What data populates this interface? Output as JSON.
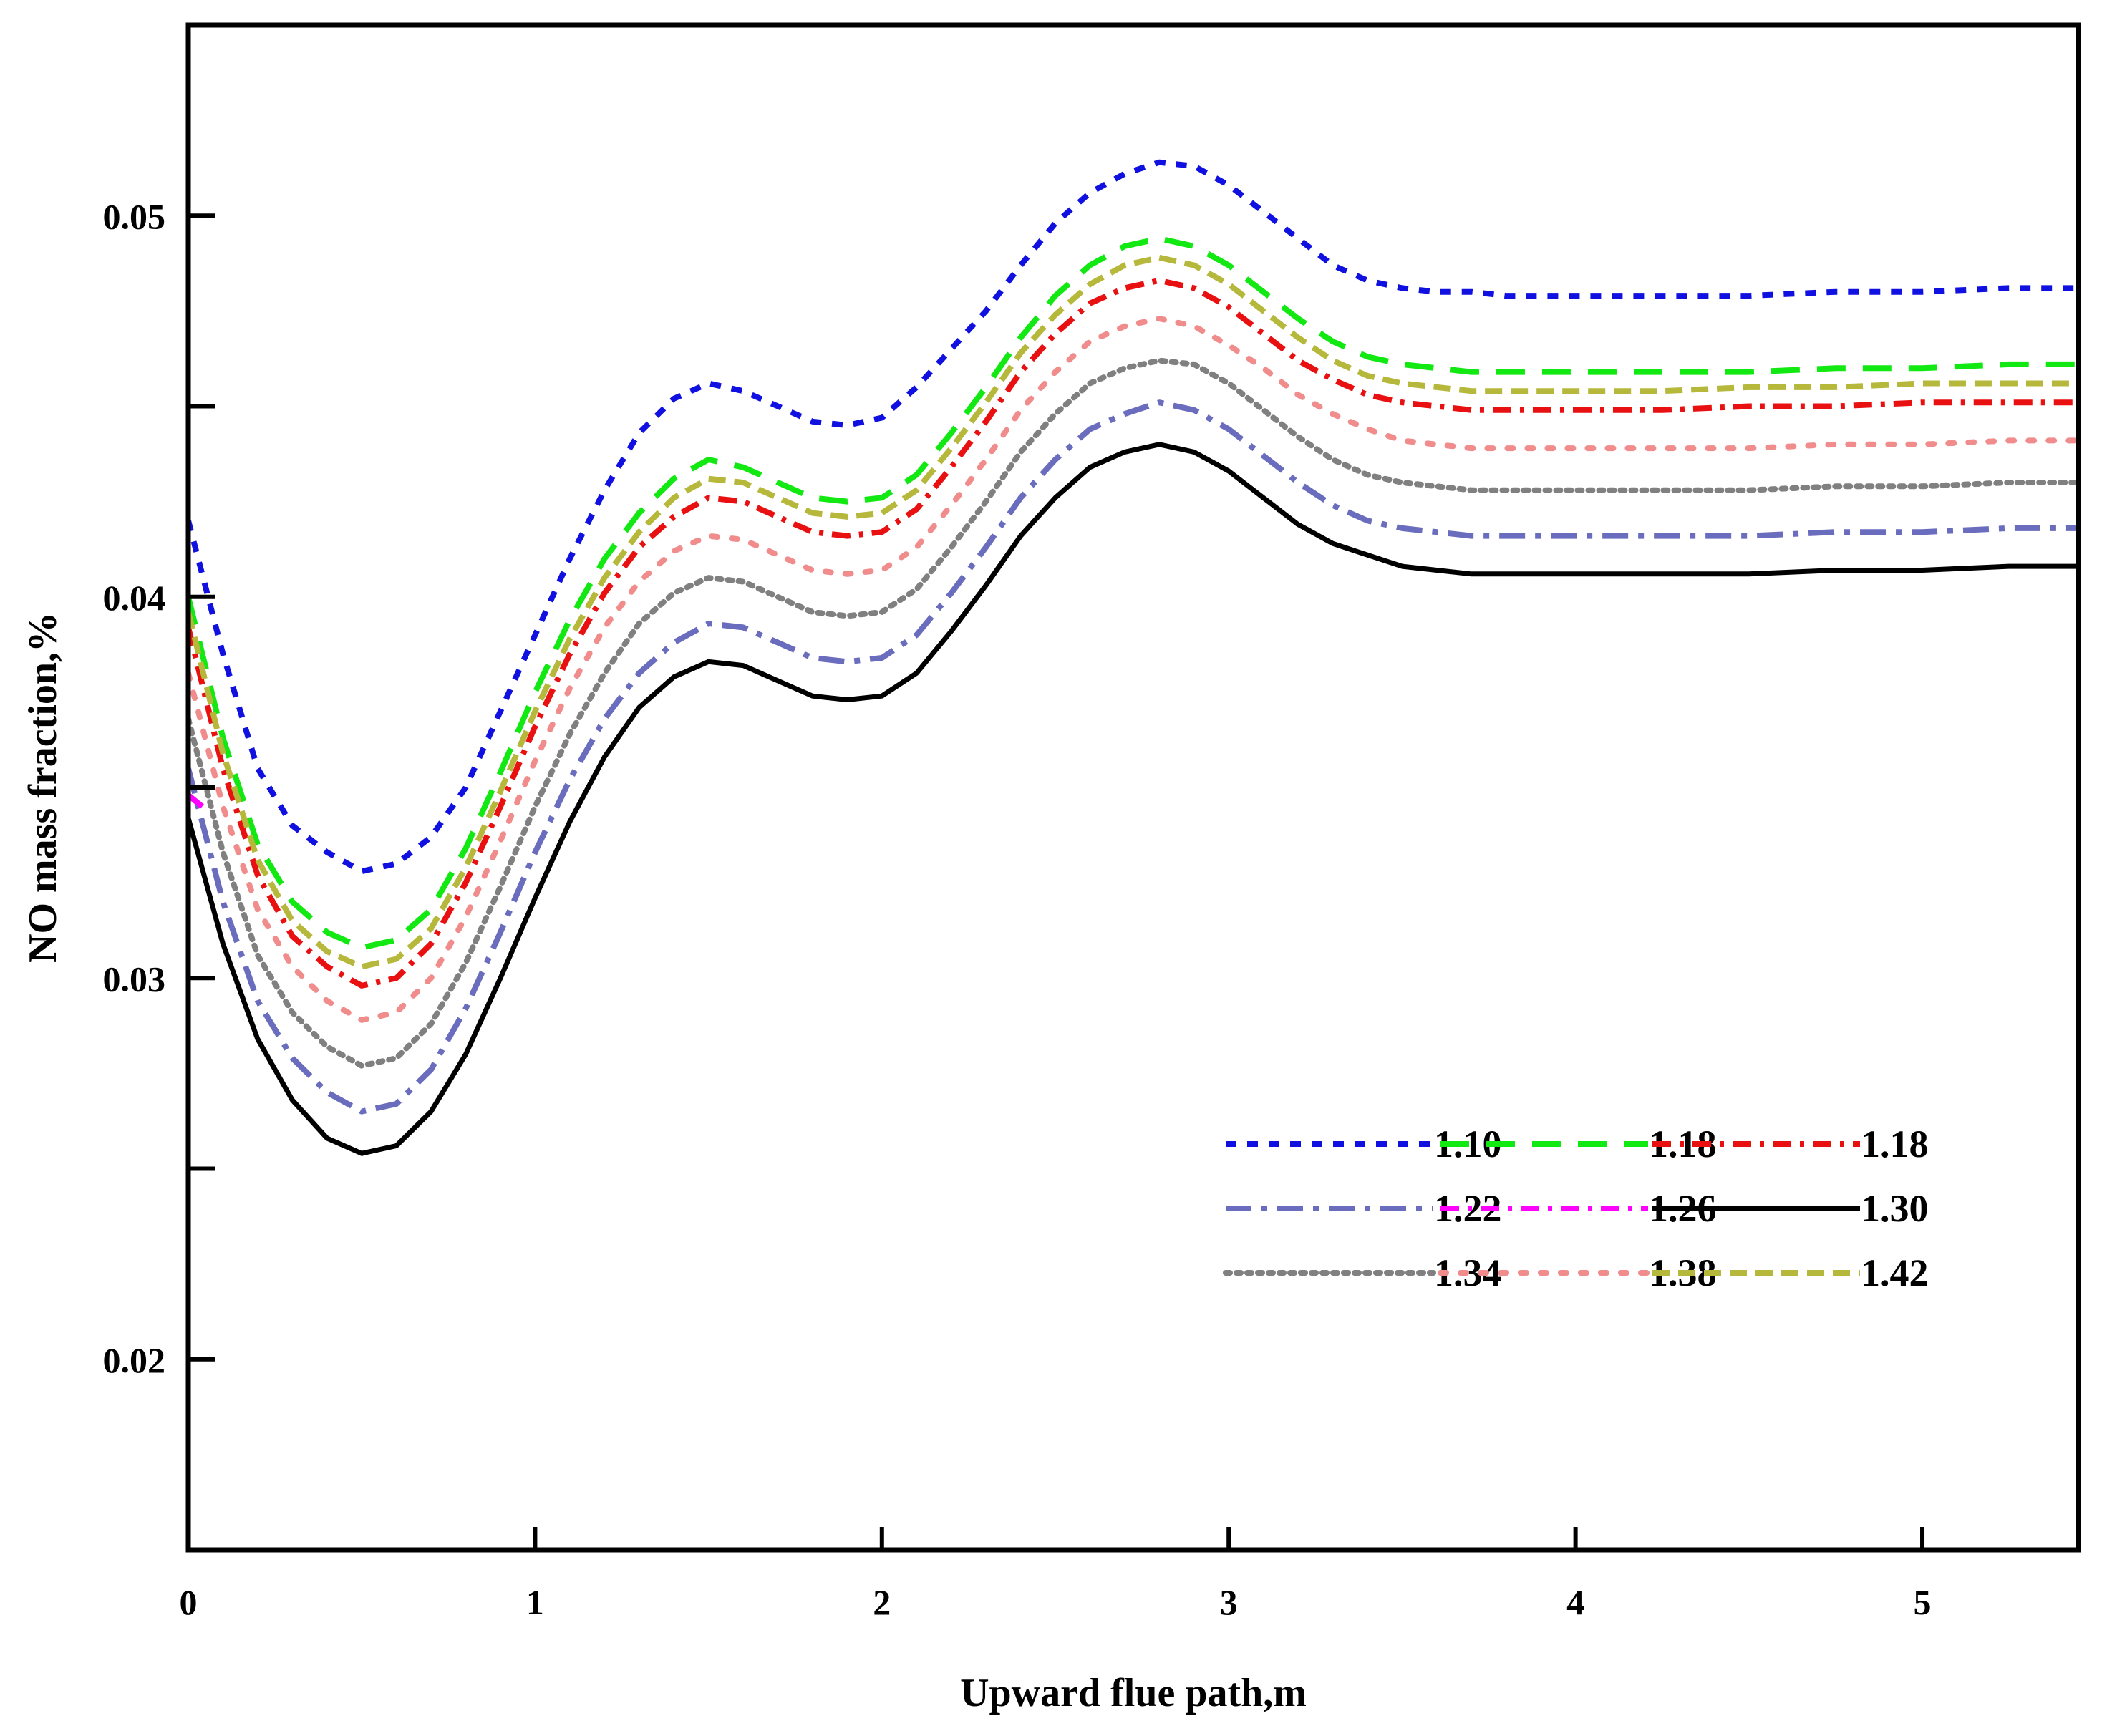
{
  "chart_data": {
    "type": "line",
    "title": "",
    "xlabel": "Upward flue path,m",
    "ylabel": "NO mass fraction,%",
    "xlim": [
      0,
      5.45
    ],
    "ylim": [
      0.015,
      0.055
    ],
    "x_ticks": [
      0,
      1,
      2,
      3,
      4,
      5
    ],
    "x_tick_labels": [
      "0",
      "1",
      "2",
      "3",
      "4",
      "5"
    ],
    "y_ticks": [
      0.02,
      0.025,
      0.03,
      0.035,
      0.04,
      0.045,
      0.05
    ],
    "y_tick_labels": [
      "0.02",
      "",
      "0.03",
      "",
      "0.04",
      "",
      "0.05"
    ],
    "grid": false,
    "legend_position": "lower-right",
    "series": [
      {
        "name": "1.10",
        "color": "#1010e0",
        "dash": "dash-short",
        "x": [
          0,
          0.1,
          0.2,
          0.3,
          0.4,
          0.5,
          0.6,
          0.7,
          0.8,
          0.9,
          1.0,
          1.1,
          1.2,
          1.3,
          1.4,
          1.5,
          1.6,
          1.7,
          1.8,
          1.9,
          2.0,
          2.1,
          2.2,
          2.3,
          2.4,
          2.5,
          2.6,
          2.7,
          2.8,
          2.9,
          3.0,
          3.1,
          3.2,
          3.3,
          3.4,
          3.5,
          3.6,
          3.7,
          3.8,
          3.9,
          4.0,
          4.25,
          4.5,
          4.75,
          5.0,
          5.25,
          5.45
        ],
        "y": [
          0.042,
          0.0385,
          0.0355,
          0.034,
          0.0333,
          0.0328,
          0.033,
          0.0337,
          0.035,
          0.037,
          0.039,
          0.041,
          0.0428,
          0.0443,
          0.0452,
          0.0456,
          0.0454,
          0.045,
          0.0446,
          0.0445,
          0.0447,
          0.0455,
          0.0465,
          0.0475,
          0.0487,
          0.0498,
          0.0506,
          0.0511,
          0.0514,
          0.0513,
          0.0508,
          0.0501,
          0.0494,
          0.0487,
          0.0483,
          0.0481,
          0.048,
          0.048,
          0.0479,
          0.0479,
          0.0479,
          0.0479,
          0.0479,
          0.048,
          0.048,
          0.0481,
          0.0481
        ]
      },
      {
        "name": "1.22",
        "color": "#6a6cbd",
        "dash": "dash-dot-long",
        "x": [
          0,
          0.1,
          0.2,
          0.3,
          0.4,
          0.5,
          0.6,
          0.7,
          0.8,
          0.9,
          1.0,
          1.1,
          1.2,
          1.3,
          1.4,
          1.5,
          1.6,
          1.7,
          1.8,
          1.9,
          2.0,
          2.1,
          2.2,
          2.3,
          2.4,
          2.5,
          2.6,
          2.7,
          2.8,
          2.9,
          3.0,
          3.1,
          3.2,
          3.3,
          3.4,
          3.5,
          3.6,
          3.7,
          3.8,
          3.9,
          4.0,
          4.25,
          4.5,
          4.75,
          5.0,
          5.25,
          5.45
        ],
        "y": [
          0.0355,
          0.032,
          0.0294,
          0.0279,
          0.027,
          0.0265,
          0.0267,
          0.0276,
          0.0292,
          0.0312,
          0.0333,
          0.0352,
          0.0368,
          0.038,
          0.0388,
          0.0393,
          0.0392,
          0.0388,
          0.0384,
          0.0383,
          0.0384,
          0.039,
          0.0401,
          0.0413,
          0.0426,
          0.0436,
          0.0444,
          0.0448,
          0.0451,
          0.0449,
          0.0444,
          0.0437,
          0.043,
          0.0424,
          0.042,
          0.0418,
          0.0417,
          0.0416,
          0.0416,
          0.0416,
          0.0416,
          0.0416,
          0.0416,
          0.0417,
          0.0417,
          0.0418,
          0.0418
        ]
      },
      {
        "name": "1.34",
        "color": "#808080",
        "dash": "dot",
        "x": [
          0,
          0.1,
          0.2,
          0.3,
          0.4,
          0.5,
          0.6,
          0.7,
          0.8,
          0.9,
          1.0,
          1.1,
          1.2,
          1.3,
          1.4,
          1.5,
          1.6,
          1.7,
          1.8,
          1.9,
          2.0,
          2.1,
          2.2,
          2.3,
          2.4,
          2.5,
          2.6,
          2.7,
          2.8,
          2.9,
          3.0,
          3.1,
          3.2,
          3.3,
          3.4,
          3.5,
          3.6,
          3.7,
          3.8,
          3.9,
          4.0,
          4.25,
          4.5,
          4.75,
          5.0,
          5.25,
          5.45
        ],
        "y": [
          0.0368,
          0.0333,
          0.0306,
          0.0291,
          0.0282,
          0.0277,
          0.0279,
          0.0288,
          0.0304,
          0.0324,
          0.0345,
          0.0364,
          0.038,
          0.0393,
          0.0401,
          0.0405,
          0.0404,
          0.04,
          0.0396,
          0.0395,
          0.0396,
          0.0402,
          0.0413,
          0.0425,
          0.0438,
          0.0448,
          0.0456,
          0.046,
          0.0462,
          0.0461,
          0.0456,
          0.0449,
          0.0442,
          0.0436,
          0.0432,
          0.043,
          0.0429,
          0.0428,
          0.0428,
          0.0428,
          0.0428,
          0.0428,
          0.0428,
          0.0429,
          0.0429,
          0.043,
          0.043
        ]
      },
      {
        "name": "1.18",
        "color": "#12e812",
        "dash": "dash-long",
        "x": [
          0,
          0.1,
          0.2,
          0.3,
          0.4,
          0.5,
          0.6,
          0.7,
          0.8,
          0.9,
          1.0,
          1.1,
          1.2,
          1.3,
          1.4,
          1.5,
          1.6,
          1.7,
          1.8,
          1.9,
          2.0,
          2.1,
          2.2,
          2.3,
          2.4,
          2.5,
          2.6,
          2.7,
          2.8,
          2.9,
          3.0,
          3.1,
          3.2,
          3.3,
          3.4,
          3.5,
          3.6,
          3.7,
          3.8,
          3.9,
          4.0,
          4.25,
          4.5,
          4.75,
          5.0,
          5.25,
          5.45
        ],
        "y": [
          0.04,
          0.0363,
          0.0335,
          0.032,
          0.0312,
          0.0308,
          0.031,
          0.0318,
          0.0334,
          0.0354,
          0.0375,
          0.0394,
          0.041,
          0.0422,
          0.0431,
          0.0436,
          0.0434,
          0.043,
          0.0426,
          0.0425,
          0.0426,
          0.0432,
          0.0443,
          0.0455,
          0.0468,
          0.0479,
          0.0487,
          0.0492,
          0.0494,
          0.0492,
          0.0487,
          0.048,
          0.0473,
          0.0467,
          0.0463,
          0.0461,
          0.046,
          0.0459,
          0.0459,
          0.0459,
          0.0459,
          0.0459,
          0.0459,
          0.046,
          0.046,
          0.0461,
          0.0461
        ]
      },
      {
        "name": "1.26",
        "color": "#ff00ff",
        "dash": "dash-dot",
        "x": [
          0,
          0.04
        ],
        "y": [
          0.0348,
          0.0345
        ]
      },
      {
        "name": "1.38",
        "color": "#f08c8c",
        "dash": "dot-sparse",
        "x": [
          0,
          0.1,
          0.2,
          0.3,
          0.4,
          0.5,
          0.6,
          0.7,
          0.8,
          0.9,
          1.0,
          1.1,
          1.2,
          1.3,
          1.4,
          1.5,
          1.6,
          1.7,
          1.8,
          1.9,
          2.0,
          2.1,
          2.2,
          2.3,
          2.4,
          2.5,
          2.6,
          2.7,
          2.8,
          2.9,
          3.0,
          3.1,
          3.2,
          3.3,
          3.4,
          3.5,
          3.6,
          3.7,
          3.8,
          3.9,
          4.0,
          4.25,
          4.5,
          4.75,
          5.0,
          5.25,
          5.45
        ],
        "y": [
          0.038,
          0.0345,
          0.0318,
          0.0303,
          0.0294,
          0.0289,
          0.0291,
          0.03,
          0.0316,
          0.0336,
          0.0357,
          0.0376,
          0.0392,
          0.0404,
          0.0412,
          0.0416,
          0.0415,
          0.0411,
          0.0407,
          0.0406,
          0.0407,
          0.0413,
          0.0424,
          0.0436,
          0.0449,
          0.0459,
          0.0467,
          0.0471,
          0.0473,
          0.0471,
          0.0466,
          0.046,
          0.0453,
          0.0448,
          0.0444,
          0.0441,
          0.044,
          0.0439,
          0.0439,
          0.0439,
          0.0439,
          0.0439,
          0.0439,
          0.044,
          0.044,
          0.0441,
          0.0441
        ]
      },
      {
        "name": "1.18",
        "color": "#e81010",
        "dash": "dash-dot",
        "x": [
          0,
          0.1,
          0.2,
          0.3,
          0.4,
          0.5,
          0.6,
          0.7,
          0.8,
          0.9,
          1.0,
          1.1,
          1.2,
          1.3,
          1.4,
          1.5,
          1.6,
          1.7,
          1.8,
          1.9,
          2.0,
          2.1,
          2.2,
          2.3,
          2.4,
          2.5,
          2.6,
          2.7,
          2.8,
          2.9,
          3.0,
          3.1,
          3.2,
          3.3,
          3.4,
          3.5,
          3.6,
          3.7,
          3.8,
          3.9,
          4.0,
          4.25,
          4.5,
          4.75,
          5.0,
          5.25,
          5.45
        ],
        "y": [
          0.0392,
          0.0355,
          0.0327,
          0.0311,
          0.0303,
          0.0298,
          0.03,
          0.0309,
          0.0325,
          0.0345,
          0.0366,
          0.0385,
          0.0401,
          0.0413,
          0.0421,
          0.0426,
          0.0425,
          0.0421,
          0.0417,
          0.0416,
          0.0417,
          0.0423,
          0.0434,
          0.0446,
          0.0459,
          0.0469,
          0.0477,
          0.0481,
          0.0483,
          0.0481,
          0.0476,
          0.0469,
          0.0462,
          0.0457,
          0.0453,
          0.0451,
          0.045,
          0.0449,
          0.0449,
          0.0449,
          0.0449,
          0.0449,
          0.045,
          0.045,
          0.0451,
          0.0451,
          0.0451
        ]
      },
      {
        "name": "1.30",
        "color": "#000000",
        "dash": "solid",
        "x": [
          0,
          0.1,
          0.2,
          0.3,
          0.4,
          0.5,
          0.6,
          0.7,
          0.8,
          0.9,
          1.0,
          1.1,
          1.2,
          1.3,
          1.4,
          1.5,
          1.6,
          1.7,
          1.8,
          1.9,
          2.0,
          2.1,
          2.2,
          2.3,
          2.4,
          2.5,
          2.6,
          2.7,
          2.8,
          2.9,
          3.0,
          3.1,
          3.2,
          3.3,
          3.4,
          3.5,
          3.6,
          3.7,
          3.8,
          3.9,
          4.0,
          4.25,
          4.5,
          4.75,
          5.0,
          5.25,
          5.45
        ],
        "y": [
          0.0342,
          0.0309,
          0.0284,
          0.0268,
          0.0258,
          0.0254,
          0.0256,
          0.0265,
          0.028,
          0.03,
          0.0321,
          0.0341,
          0.0358,
          0.0371,
          0.0379,
          0.0383,
          0.0382,
          0.0378,
          0.0374,
          0.0373,
          0.0374,
          0.038,
          0.0391,
          0.0403,
          0.0416,
          0.0426,
          0.0434,
          0.0438,
          0.044,
          0.0438,
          0.0433,
          0.0426,
          0.0419,
          0.0414,
          0.0411,
          0.0408,
          0.0407,
          0.0406,
          0.0406,
          0.0406,
          0.0406,
          0.0406,
          0.0406,
          0.0407,
          0.0407,
          0.0408,
          0.0408
        ]
      },
      {
        "name": "1.42",
        "color": "#b5b83a",
        "dash": "dash-medium",
        "x": [
          0,
          0.1,
          0.2,
          0.3,
          0.4,
          0.5,
          0.6,
          0.7,
          0.8,
          0.9,
          1.0,
          1.1,
          1.2,
          1.3,
          1.4,
          1.5,
          1.6,
          1.7,
          1.8,
          1.9,
          2.0,
          2.1,
          2.2,
          2.3,
          2.4,
          2.5,
          2.6,
          2.7,
          2.8,
          2.9,
          3.0,
          3.1,
          3.2,
          3.3,
          3.4,
          3.5,
          3.6,
          3.7,
          3.8,
          3.9,
          4.0,
          4.25,
          4.5,
          4.75,
          5.0,
          5.25,
          5.45
        ],
        "y": [
          0.0396,
          0.0359,
          0.0331,
          0.0315,
          0.0307,
          0.0303,
          0.0305,
          0.0313,
          0.0329,
          0.0349,
          0.037,
          0.0389,
          0.0405,
          0.0417,
          0.0426,
          0.0431,
          0.043,
          0.0426,
          0.0422,
          0.0421,
          0.0422,
          0.0428,
          0.0439,
          0.0451,
          0.0464,
          0.0474,
          0.0482,
          0.0487,
          0.0489,
          0.0487,
          0.0482,
          0.0475,
          0.0468,
          0.0462,
          0.0458,
          0.0456,
          0.0455,
          0.0454,
          0.0454,
          0.0454,
          0.0454,
          0.0454,
          0.0455,
          0.0455,
          0.0456,
          0.0456,
          0.0456
        ]
      }
    ]
  }
}
